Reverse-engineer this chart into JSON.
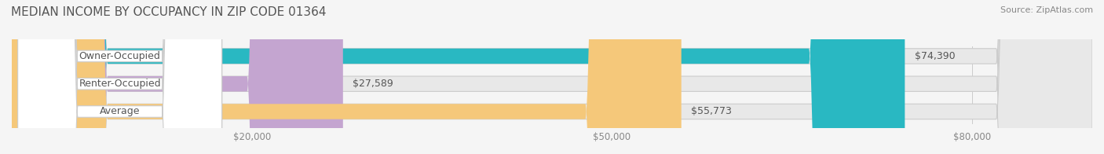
{
  "title": "MEDIAN INCOME BY OCCUPANCY IN ZIP CODE 01364",
  "source": "Source: ZipAtlas.com",
  "categories": [
    "Owner-Occupied",
    "Renter-Occupied",
    "Average"
  ],
  "values": [
    74390,
    27589,
    55773
  ],
  "bar_colors": [
    "#29b8c2",
    "#c4a5d0",
    "#f5c87a"
  ],
  "bar_edge_colors": [
    "#1a9aaa",
    "#a880bb",
    "#e0a84a"
  ],
  "label_colors": [
    "#29b8c2",
    "#c4a5d0",
    "#f5c87a"
  ],
  "xlim": [
    0,
    90000
  ],
  "xticks": [
    0,
    20000,
    50000,
    80000
  ],
  "xtick_labels": [
    "$20,000",
    "$50,000",
    "$80,000"
  ],
  "background_color": "#f5f5f5",
  "bar_background": "#e8e8e8",
  "title_fontsize": 11,
  "source_fontsize": 8,
  "label_fontsize": 9,
  "value_fontsize": 9,
  "tick_fontsize": 8.5
}
